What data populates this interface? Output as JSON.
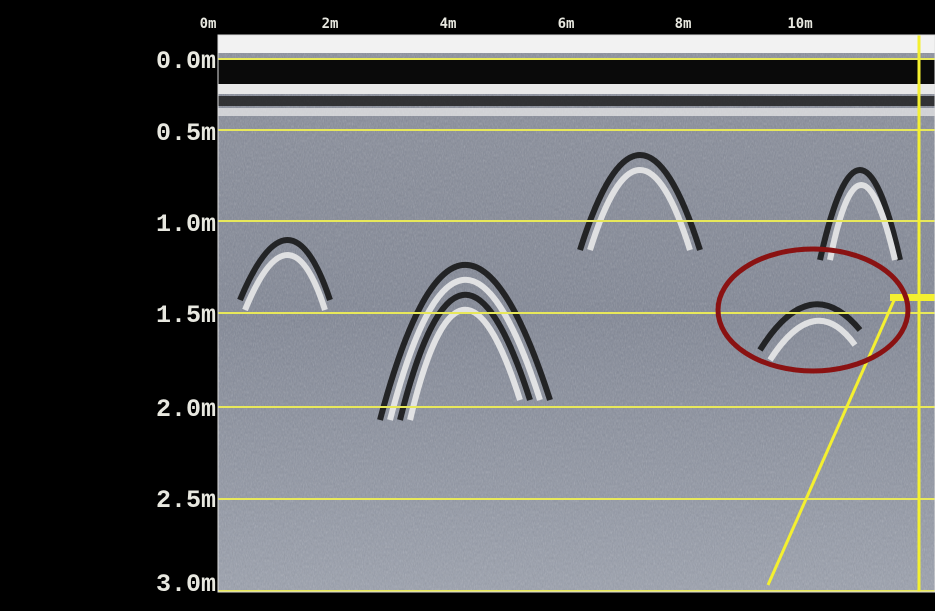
{
  "top_axis": {
    "labels": [
      "0m",
      "2m",
      "4m",
      "6m",
      "8m",
      "10m"
    ]
  },
  "depth_axis": {
    "labels": [
      "0.0m",
      "0.5m",
      "1.0m",
      "1.5m",
      "2.0m",
      "2.5m",
      "3.0m"
    ]
  }
}
